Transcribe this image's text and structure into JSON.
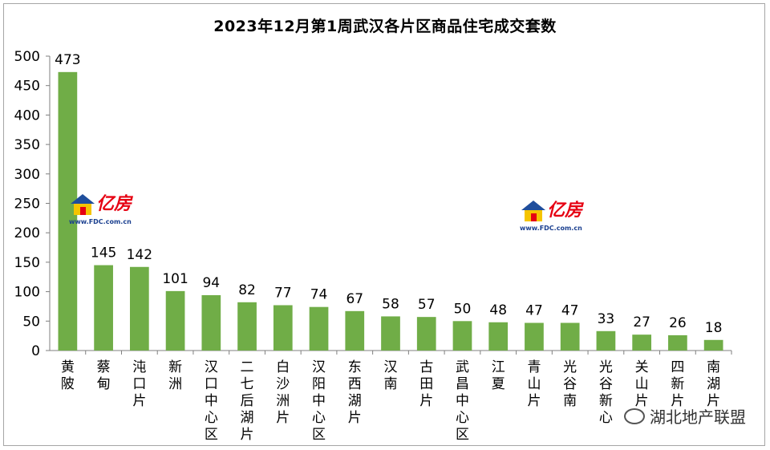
{
  "chart_data": {
    "type": "bar",
    "title": "2023年12月第1周武汉各片区商品住宅成交套数",
    "categories": [
      "黄陂",
      "蔡甸",
      "沌口片",
      "新洲",
      "汉口中心区",
      "二七后湖片",
      "白沙洲片",
      "汉阳中心区",
      "东西湖片",
      "汉南",
      "古田片",
      "武昌中心区",
      "江夏",
      "青山片",
      "光谷南",
      "光谷新心",
      "关山片",
      "四新片",
      "南湖片"
    ],
    "values": [
      473,
      145,
      142,
      101,
      94,
      82,
      77,
      74,
      67,
      58,
      57,
      50,
      48,
      47,
      47,
      33,
      27,
      26,
      18
    ],
    "yticks": [
      "0",
      "50",
      "100",
      "150",
      "200",
      "250",
      "300",
      "350",
      "400",
      "450",
      "500"
    ],
    "ylim": [
      0,
      500
    ],
    "xlabel": "",
    "ylabel": "",
    "grid": false,
    "bar_color": "#70ad47"
  },
  "watermarks": {
    "logo_name": "亿房",
    "logo_url": "www.FDC.com.cn",
    "social": "湖北地产联盟"
  }
}
